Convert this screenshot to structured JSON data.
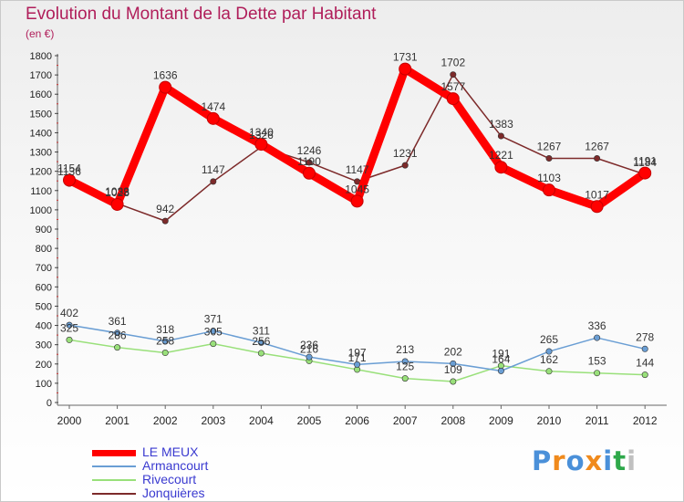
{
  "title": "Evolution du Montant de la Dette par Habitant",
  "subtitle": "(en €)",
  "chart_data": {
    "type": "line",
    "title": "Evolution du Montant de la Dette par Habitant",
    "subtitle": "(en €)",
    "x": [
      "2000",
      "2001",
      "2002",
      "2003",
      "2004",
      "2005",
      "2006",
      "2007",
      "2008",
      "2009",
      "2010",
      "2011",
      "2012"
    ],
    "ylim": [
      0,
      1800
    ],
    "yticks": [
      0,
      100,
      200,
      300,
      400,
      500,
      600,
      700,
      800,
      900,
      1000,
      1100,
      1200,
      1300,
      1400,
      1500,
      1600,
      1700,
      1800
    ],
    "grid": false,
    "legend_position": "bottom-left",
    "series": [
      {
        "name": "LE MEUX",
        "color": "#ff0000",
        "values": [
          1154,
          1028,
          1636,
          1474,
          1340,
          1190,
          1045,
          1731,
          1577,
          1221,
          1103,
          1017,
          1191
        ]
      },
      {
        "name": "Armancourt",
        "color": "#6a9ed4",
        "values": [
          402,
          361,
          318,
          371,
          311,
          236,
          197,
          213,
          202,
          164,
          265,
          336,
          278
        ]
      },
      {
        "name": "Rivecourt",
        "color": "#99e07a",
        "values": [
          325,
          286,
          258,
          305,
          256,
          216,
          171,
          125,
          109,
          191,
          162,
          153,
          144
        ]
      },
      {
        "name": "Jonquières",
        "color": "#7d2a2a",
        "values": [
          1136,
          1033,
          942,
          1147,
          1326,
          1246,
          1147,
          1231,
          1702,
          1383,
          1267,
          1267,
          1184
        ]
      }
    ]
  },
  "legend": [
    {
      "label": "LE MEUX",
      "color": "#ff0000"
    },
    {
      "label": "Armancourt",
      "color": "#6a9ed4"
    },
    {
      "label": "Rivecourt",
      "color": "#99e07a"
    },
    {
      "label": "Jonquières",
      "color": "#7d2a2a"
    }
  ],
  "logo": {
    "text": "Proxiti",
    "colors": [
      "#4a90d9",
      "#f08a1c",
      "#4a90d9",
      "#f08a1c",
      "#4a90d9",
      "#2ea84a",
      "#c0c0c0"
    ]
  }
}
